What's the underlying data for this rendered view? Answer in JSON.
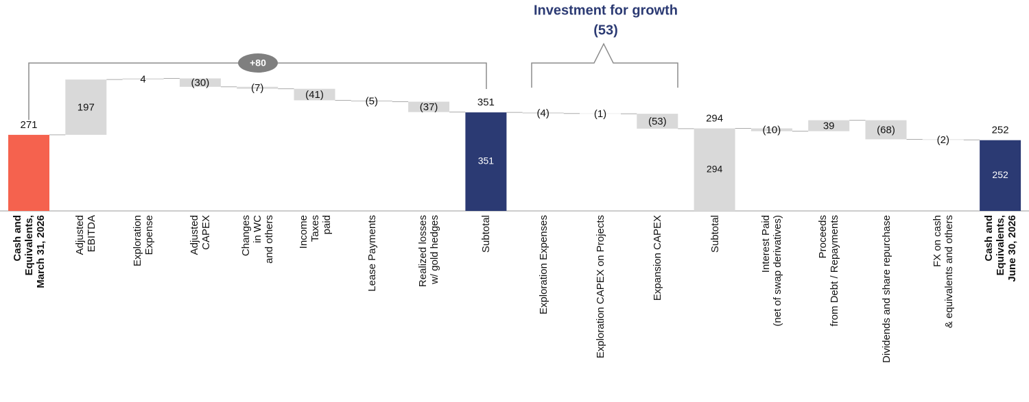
{
  "chart_data": {
    "type": "waterfall",
    "categories": [
      "Cash and\nEquivalents,\nMarch 31, 2026",
      "Adjusted\nEBITDA",
      "Exploration\nExpense",
      "Adjusted\nCAPEX",
      "Changes\nin WC\nand others",
      "Income\nTaxes\npaid",
      "Lease Payments",
      "Realized losses\nw/ gold hedges",
      "Subtotal",
      "Exploration Expenses",
      "Exploration CAPEX on Projects",
      "Expansion CAPEX",
      "Subtotal",
      "Interest Paid\n(net of swap derivatives)",
      "Proceeds\nfrom Debt / Repayments",
      "Dividends and share repurchase",
      "FX on cash\n& equivalents and others",
      "Cash and\nEquivalents,\nJune 30, 2026"
    ],
    "values": [
      271,
      197,
      4,
      -30,
      -7,
      -41,
      -5,
      -37,
      351,
      -4,
      -1,
      -53,
      294,
      -10,
      39,
      -68,
      -2,
      252
    ],
    "value_labels": [
      "271",
      "197",
      "4",
      "(30)",
      "(7)",
      "(41)",
      "(5)",
      "(37)",
      "351",
      "(4)",
      "(1)",
      "(53)",
      "294",
      "(10)",
      "39",
      "(68)",
      "(2)",
      "252"
    ],
    "measures": [
      "absolute",
      "relative",
      "relative",
      "relative",
      "relative",
      "relative",
      "relative",
      "relative",
      "total",
      "relative",
      "relative",
      "relative",
      "total",
      "relative",
      "relative",
      "relative",
      "relative",
      "total"
    ],
    "colors": [
      "#f5624e",
      "#d9d9d9",
      "#d9d9d9",
      "#d9d9d9",
      "#d9d9d9",
      "#d9d9d9",
      "#d9d9d9",
      "#d9d9d9",
      "#2b3a73",
      "#d9d9d9",
      "#d9d9d9",
      "#d9d9d9",
      "#d9d9d9",
      "#d9d9d9",
      "#d9d9d9",
      "#d9d9d9",
      "#d9d9d9",
      "#2b3a73"
    ],
    "annotations": {
      "bracket_label": "+80",
      "growth_title": "Investment for growth",
      "growth_value": "(53)"
    }
  }
}
